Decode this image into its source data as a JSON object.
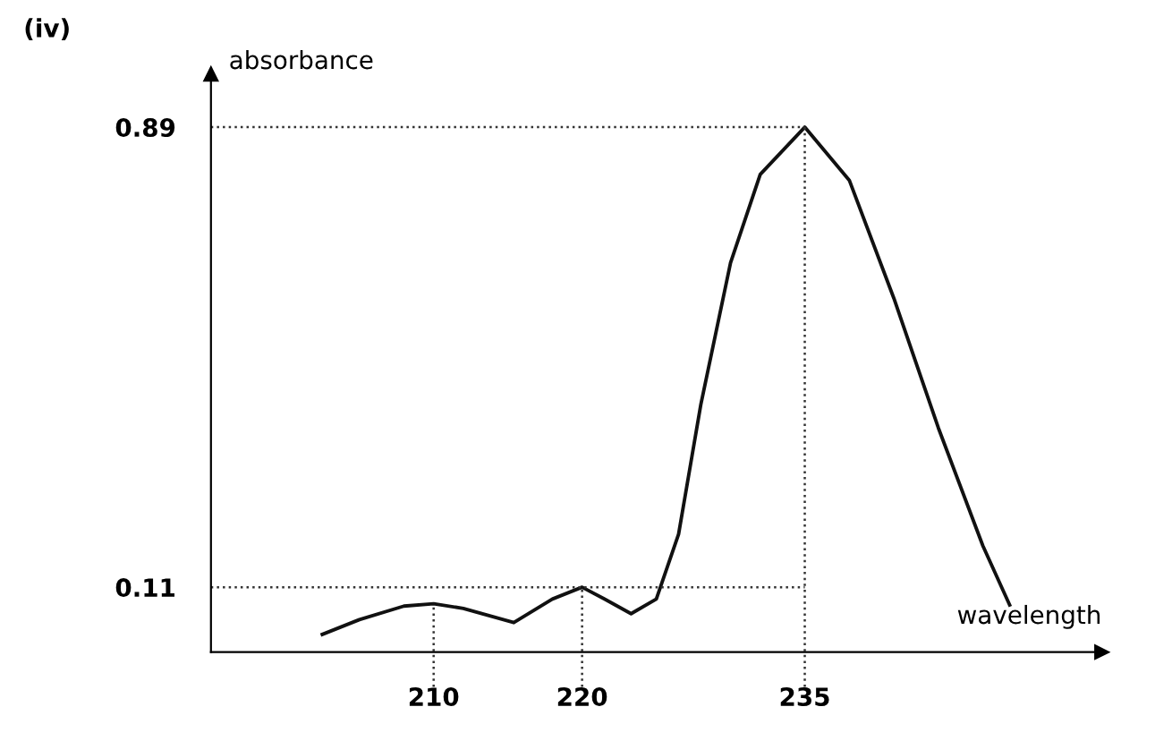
{
  "chart_data": {
    "type": "line",
    "title": "(iv)",
    "xlabel": "wavelength",
    "ylabel": "absorbance",
    "series": [
      {
        "color": "#111111",
        "x": [
          202.5,
          205,
          208,
          210,
          212,
          215.4,
          218,
          220,
          221.5,
          223.3,
          225,
          226.5,
          228,
          230,
          232,
          235,
          238,
          241,
          244,
          247,
          248.8
        ],
        "values": [
          0.03,
          0.055,
          0.078,
          0.082,
          0.074,
          0.05,
          0.09,
          0.11,
          0.09,
          0.065,
          0.09,
          0.2,
          0.42,
          0.66,
          0.81,
          0.89,
          0.8,
          0.6,
          0.38,
          0.18,
          0.08
        ]
      }
    ],
    "xlim": [
      195,
      255
    ],
    "ylim": [
      0,
      0.98
    ],
    "xticks": [
      210,
      220,
      235
    ],
    "yticks": [
      0.11,
      0.89
    ],
    "ref_lines": [
      {
        "axis": "x",
        "value": 210,
        "line_style": "dotted"
      },
      {
        "axis": "x",
        "value": 220,
        "line_style": "dotted"
      },
      {
        "axis": "x",
        "value": 235,
        "line_style": "dotted"
      },
      {
        "axis": "y",
        "value": 0.11,
        "line_style": "dotted"
      },
      {
        "axis": "y",
        "value": 0.89,
        "line_style": "dotted"
      }
    ],
    "grid": false,
    "legend": false,
    "line_style": "solid",
    "marker": "none"
  }
}
